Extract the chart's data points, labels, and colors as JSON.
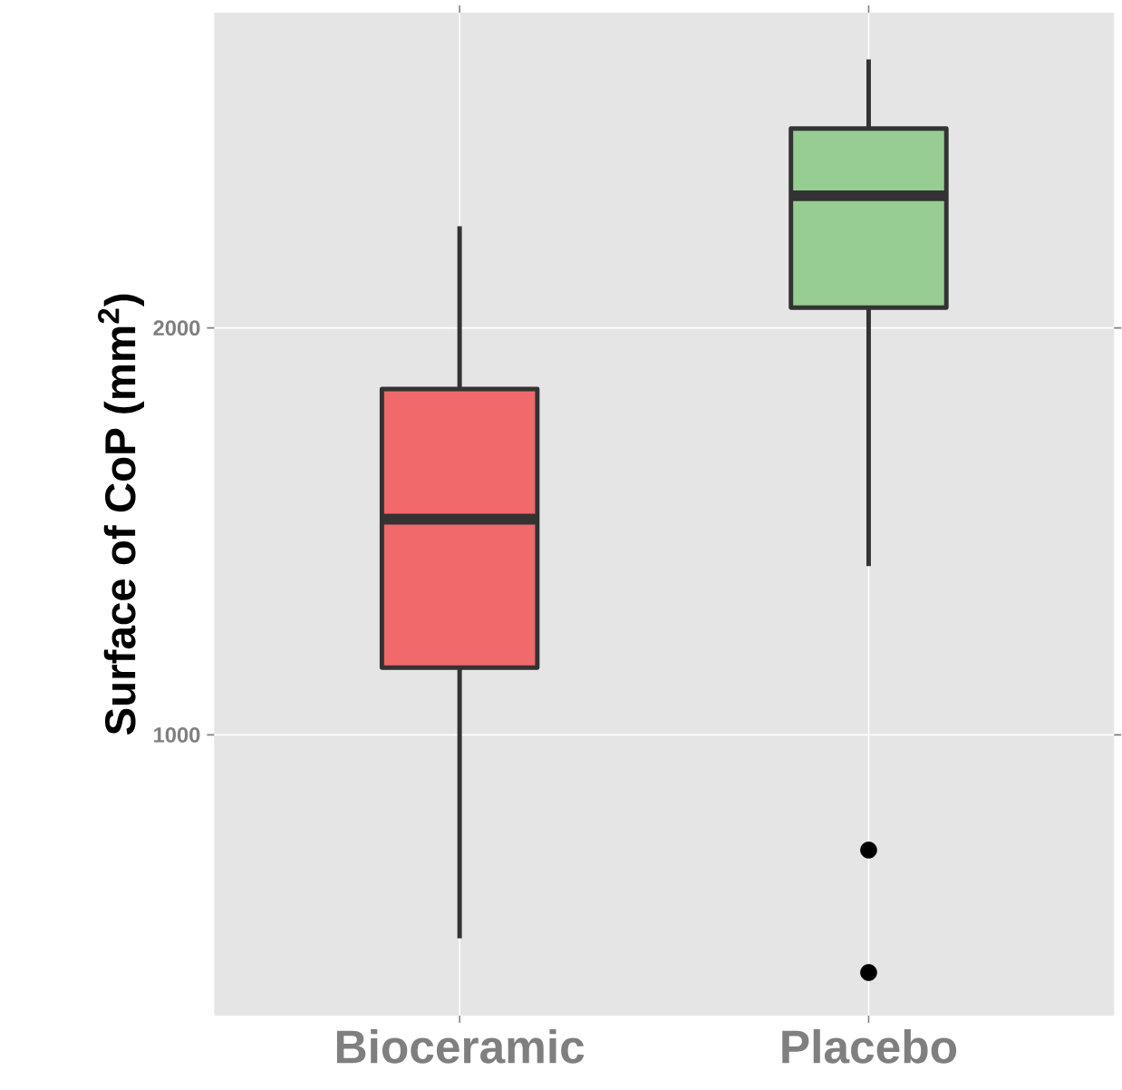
{
  "chart_data": {
    "type": "box",
    "ylabel": "Surface of CoP (mm$^{2}$)",
    "categories": [
      "Bioceramic",
      "Placebo"
    ],
    "boxes": [
      {
        "low": 500,
        "q1": 1165,
        "median": 1530,
        "q3": 1850,
        "high": 2250
      },
      {
        "low": 1415,
        "q1": 2050,
        "median": 2325,
        "q3": 2490,
        "high": 2660,
        "outliers": [
          717,
          416
        ]
      }
    ],
    "colors": [
      "#f0696b",
      "#96cd93"
    ],
    "ylim": [
      310,
      2775
    ],
    "yticks": [
      1000,
      2000
    ],
    "grid": true
  }
}
